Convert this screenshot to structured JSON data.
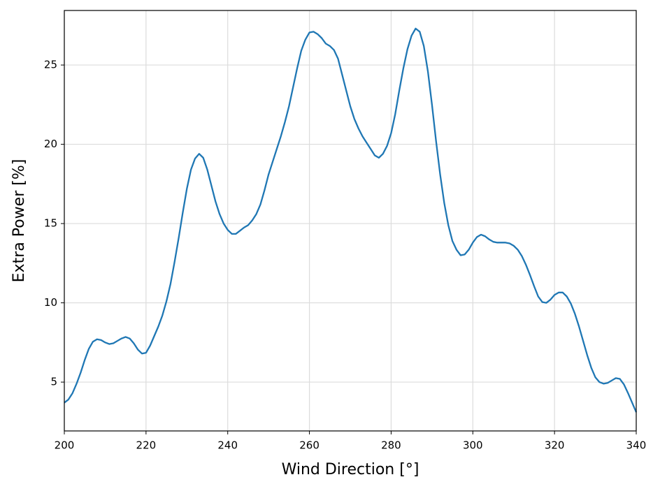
{
  "chart_data": {
    "type": "line",
    "xlabel": "Wind Direction [°]",
    "ylabel": "Extra Power [%]",
    "x": [
      200,
      201,
      202,
      203,
      204,
      205,
      206,
      207,
      208,
      209,
      210,
      211,
      212,
      213,
      214,
      215,
      216,
      217,
      218,
      219,
      220,
      221,
      222,
      223,
      224,
      225,
      226,
      227,
      228,
      229,
      230,
      231,
      232,
      233,
      234,
      235,
      236,
      237,
      238,
      239,
      240,
      241,
      242,
      243,
      244,
      245,
      246,
      247,
      248,
      249,
      250,
      251,
      252,
      253,
      254,
      255,
      256,
      257,
      258,
      259,
      260,
      261,
      262,
      263,
      264,
      265,
      266,
      267,
      268,
      269,
      270,
      271,
      272,
      273,
      274,
      275,
      276,
      277,
      278,
      279,
      280,
      281,
      282,
      283,
      284,
      285,
      286,
      287,
      288,
      289,
      290,
      291,
      292,
      293,
      294,
      295,
      296,
      297,
      298,
      299,
      300,
      301,
      302,
      303,
      304,
      305,
      306,
      307,
      308,
      309,
      310,
      311,
      312,
      313,
      314,
      315,
      316,
      317,
      318,
      319,
      320,
      321,
      322,
      323,
      324,
      325,
      326,
      327,
      328,
      329,
      330,
      331,
      332,
      333,
      334,
      335,
      336,
      337,
      338,
      339,
      340
    ],
    "series": [
      {
        "color": "#1f77b4",
        "values": [
          3.7,
          3.9,
          4.3,
          4.9,
          5.6,
          6.4,
          7.1,
          7.55,
          7.7,
          7.65,
          7.5,
          7.4,
          7.45,
          7.6,
          7.75,
          7.85,
          7.75,
          7.45,
          7.05,
          6.8,
          6.85,
          7.3,
          7.9,
          8.5,
          9.2,
          10.1,
          11.2,
          12.6,
          14.1,
          15.7,
          17.2,
          18.4,
          19.1,
          19.4,
          19.15,
          18.4,
          17.4,
          16.4,
          15.6,
          15.0,
          14.6,
          14.35,
          14.35,
          14.55,
          14.75,
          14.9,
          15.2,
          15.6,
          16.2,
          17.1,
          18.1,
          18.9,
          19.7,
          20.5,
          21.4,
          22.4,
          23.6,
          24.8,
          25.9,
          26.6,
          27.05,
          27.1,
          26.95,
          26.7,
          26.35,
          26.2,
          25.95,
          25.4,
          24.4,
          23.4,
          22.4,
          21.6,
          21.0,
          20.5,
          20.1,
          19.7,
          19.3,
          19.15,
          19.4,
          19.9,
          20.7,
          21.9,
          23.4,
          24.8,
          26.0,
          26.85,
          27.3,
          27.1,
          26.2,
          24.6,
          22.5,
          20.2,
          18.1,
          16.3,
          14.9,
          13.9,
          13.35,
          13.0,
          13.05,
          13.35,
          13.8,
          14.15,
          14.3,
          14.2,
          14.0,
          13.85,
          13.8,
          13.8,
          13.8,
          13.75,
          13.6,
          13.35,
          12.95,
          12.4,
          11.75,
          11.05,
          10.4,
          10.05,
          10.0,
          10.2,
          10.5,
          10.65,
          10.65,
          10.4,
          9.95,
          9.3,
          8.5,
          7.6,
          6.7,
          5.9,
          5.3,
          5.0,
          4.9,
          4.95,
          5.1,
          5.25,
          5.2,
          4.85,
          4.3,
          3.7,
          3.1
        ]
      }
    ],
    "xlim": [
      200,
      340
    ],
    "xticks": [
      200,
      220,
      240,
      260,
      280,
      300,
      320,
      340
    ],
    "ylim": [
      1.92,
      28.44
    ],
    "yticks": [
      5,
      10,
      15,
      20,
      25
    ],
    "grid": true
  }
}
